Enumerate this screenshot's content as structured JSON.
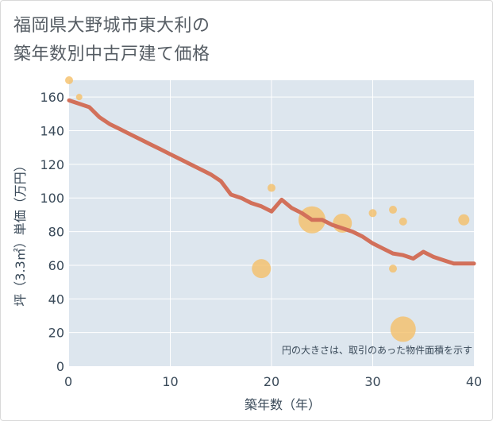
{
  "title_lines": [
    "福岡県大野城市東大利の",
    "築年数別中古戸建て価格"
  ],
  "colors": {
    "plot_bg": "#dde6ee",
    "grid": "#ffffff",
    "line": "#d2705a",
    "bubble": "#f5bf68",
    "text": "#3a4a59",
    "title": "#555c63"
  },
  "chart_data": {
    "type": "scatter",
    "title": "福岡県大野城市東大利の築年数別中古戸建て価格",
    "xlabel": "築年数（年）",
    "ylabel": "坪（3.3㎡）単価（万円）",
    "xlim": [
      0,
      40
    ],
    "ylim": [
      0,
      170
    ],
    "xticks": [
      0,
      10,
      20,
      30,
      40
    ],
    "yticks": [
      0,
      20,
      40,
      60,
      80,
      100,
      120,
      140,
      160
    ],
    "grid": true,
    "note": "円の大きさは、取引のあった物件面積を示す",
    "trend_line": {
      "x": [
        0,
        1,
        2,
        3,
        4,
        5,
        6,
        7,
        8,
        9,
        10,
        11,
        12,
        13,
        14,
        15,
        16,
        17,
        18,
        19,
        20,
        21,
        22,
        23,
        24,
        25,
        26,
        27,
        28,
        29,
        30,
        31,
        32,
        33,
        34,
        35,
        36,
        37,
        38,
        39,
        40
      ],
      "y": [
        158,
        156,
        154,
        148,
        144,
        141,
        138,
        135,
        132,
        129,
        126,
        123,
        120,
        117,
        114,
        110,
        102,
        100,
        97,
        95,
        92,
        99,
        94,
        91,
        87,
        87,
        84,
        82,
        80,
        77,
        73,
        70,
        67,
        66,
        64,
        68,
        65,
        63,
        61,
        61,
        61
      ]
    },
    "bubbles": [
      {
        "x": 0,
        "y": 170,
        "size": 5
      },
      {
        "x": 1,
        "y": 160,
        "size": 4
      },
      {
        "x": 19,
        "y": 58,
        "size": 12
      },
      {
        "x": 20,
        "y": 106,
        "size": 5
      },
      {
        "x": 24,
        "y": 87,
        "size": 17
      },
      {
        "x": 27,
        "y": 85,
        "size": 12
      },
      {
        "x": 30,
        "y": 91,
        "size": 5
      },
      {
        "x": 32,
        "y": 93,
        "size": 5
      },
      {
        "x": 32,
        "y": 58,
        "size": 5
      },
      {
        "x": 33,
        "y": 86,
        "size": 5
      },
      {
        "x": 33,
        "y": 22,
        "size": 16
      },
      {
        "x": 39,
        "y": 87,
        "size": 7
      }
    ]
  }
}
